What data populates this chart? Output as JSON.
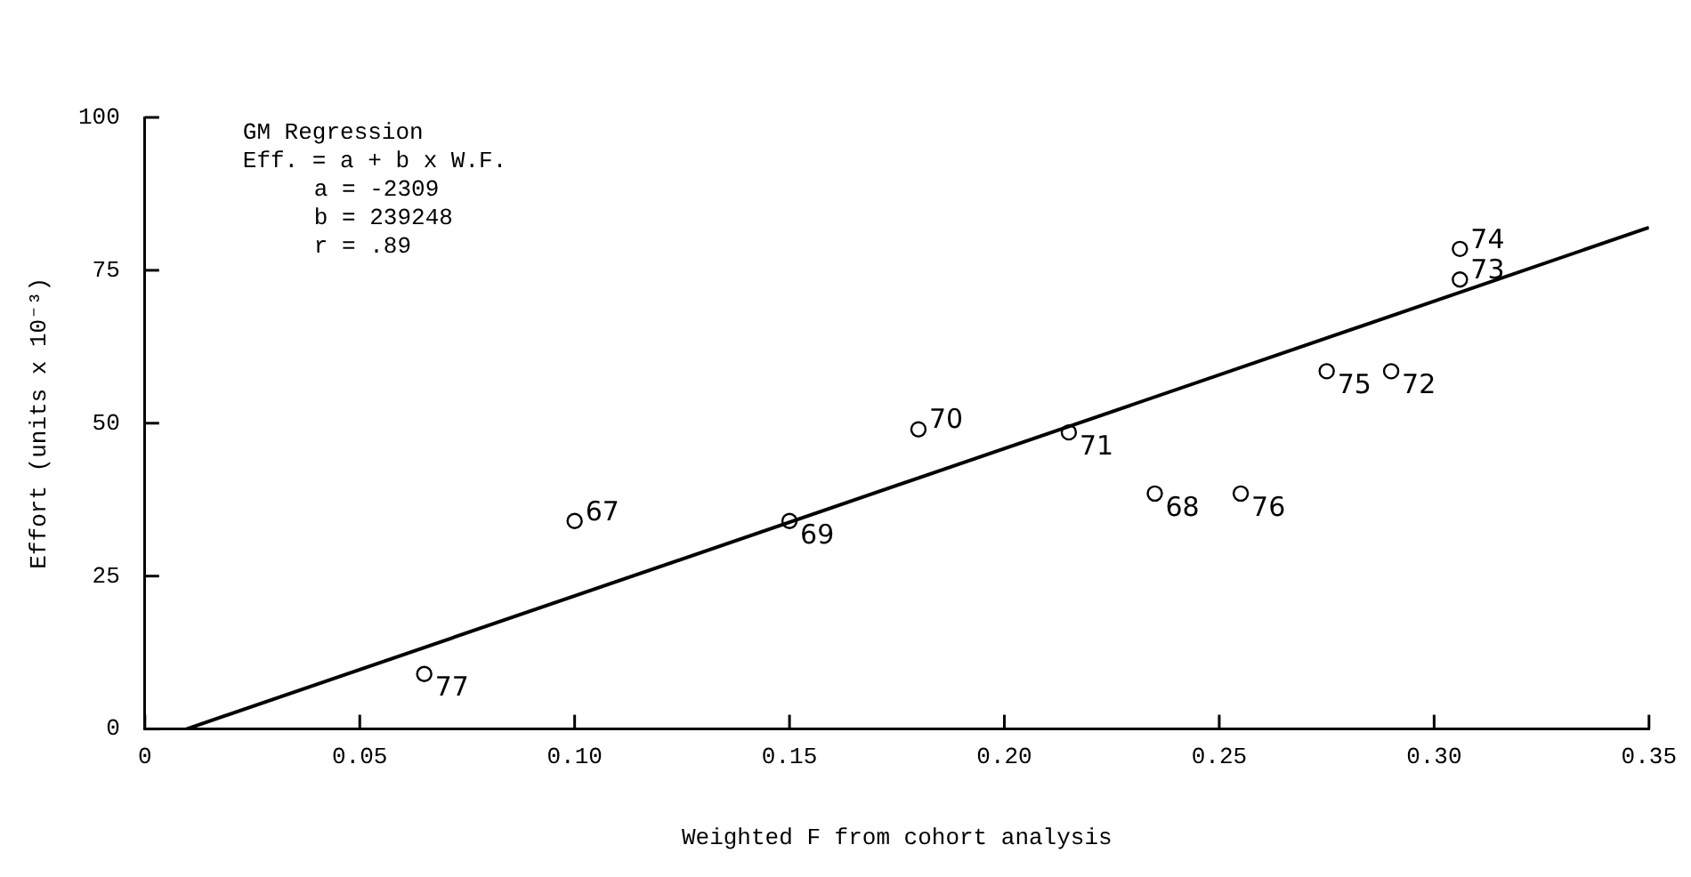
{
  "chart_data": {
    "type": "scatter",
    "xlabel": "Weighted F from cohort analysis",
    "ylabel": "Effort (units x 10⁻³)",
    "xlim": [
      0,
      0.35
    ],
    "xticks": [
      0,
      {
        "value": 0.05,
        "label": "0.05"
      },
      {
        "value": 0.1,
        "label": "0.10"
      },
      {
        "value": 0.15,
        "label": "0.15"
      },
      {
        "value": 0.2,
        "label": "0.20"
      },
      {
        "value": 0.25,
        "label": "0.25"
      },
      {
        "value": 0.3,
        "label": "0.30"
      },
      {
        "value": 0.35,
        "label": "0.35"
      }
    ],
    "ylim": [
      0,
      100
    ],
    "yticks": [
      0,
      25,
      50,
      75,
      100
    ],
    "series": [
      {
        "type": "scatter",
        "marker": "circle",
        "color": "#000000",
        "x": [
          0.065,
          0.1,
          0.15,
          0.18,
          0.215,
          0.235,
          0.255,
          0.275,
          0.29,
          0.306,
          0.306
        ],
        "values": [
          9,
          34,
          34,
          49,
          48.5,
          38.5,
          38.5,
          58.5,
          58.5,
          78.5,
          73.5
        ]
      },
      {
        "type": "line",
        "color": "#000000",
        "x": [
          0.0097,
          0.35
        ],
        "values": [
          0,
          82
        ]
      }
    ],
    "annotations": [
      "GM Regression",
      "Eff. = a + b x W.F.",
      "a = -2309",
      "b = 239248",
      "r = .89",
      {
        "text": "77",
        "x": 0.065,
        "y": 9
      },
      {
        "text": "67",
        "x": 0.1,
        "y": 34
      },
      {
        "text": "69",
        "x": 0.15,
        "y": 34
      },
      {
        "text": "70",
        "x": 0.18,
        "y": 49
      },
      {
        "text": "71",
        "x": 0.215,
        "y": 48.5
      },
      {
        "text": "68",
        "x": 0.235,
        "y": 38.5
      },
      {
        "text": "76",
        "x": 0.255,
        "y": 38.5
      },
      {
        "text": "75",
        "x": 0.275,
        "y": 58.5
      },
      {
        "text": "72",
        "x": 0.29,
        "y": 58.5
      },
      {
        "text": "74",
        "x": 0.306,
        "y": 78.5
      },
      {
        "text": "73",
        "x": 0.306,
        "y": 73.5
      }
    ]
  }
}
